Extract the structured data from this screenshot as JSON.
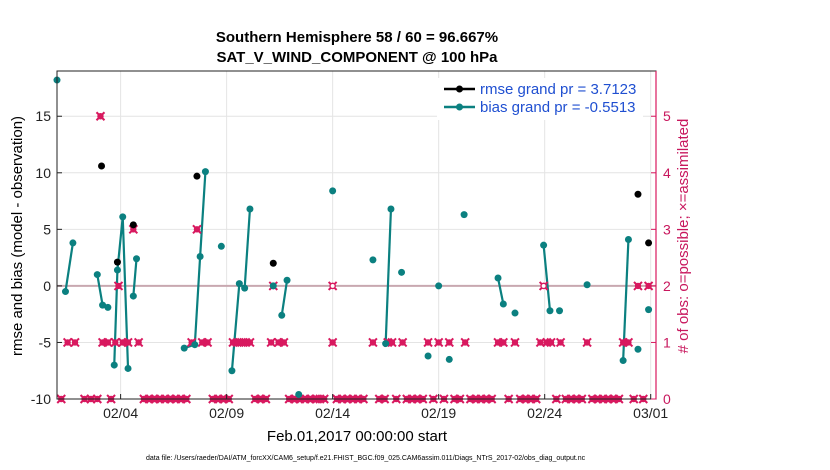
{
  "chart_data": {
    "type": "scatter",
    "title_line1": "Southern Hemisphere 58 / 60 = 96.667%",
    "title_line2": "SAT_V_WIND_COMPONENT @ 100 hPa",
    "xlabel": "Feb.01,2017 00:00:00 start",
    "ylabel": "rmse and bias (model - observation)",
    "ylabel_right": "# of obs: o=possible; ×=assimilated",
    "xlim": [
      1,
      29.25
    ],
    "ylim": [
      -10,
      19
    ],
    "ylim_right": [
      0,
      5.8
    ],
    "x_tick_values": [
      4,
      9,
      14,
      19,
      24,
      29
    ],
    "x_tick_labels": [
      "02/04",
      "02/09",
      "02/14",
      "02/19",
      "02/24",
      "03/01"
    ],
    "y_ticks": [
      -10,
      -5,
      0,
      5,
      10,
      15
    ],
    "y_ticks_right": [
      0,
      1,
      2,
      3,
      4,
      5
    ],
    "grid": true,
    "legend_position": "top-right",
    "zero_line": true,
    "colors": {
      "rmse": "#000000",
      "bias": "#0b8080",
      "obs": "#d8195f",
      "zero": "#c8a8b0",
      "grid": "#e4e4e4"
    },
    "series": [
      {
        "name": "rmse grand pr = 3.7123",
        "segments": [
          [
            [
              3.1,
              10.6
            ]
          ],
          [
            [
              3.85,
              2.1
            ]
          ],
          [
            [
              4.6,
              5.4
            ]
          ],
          [
            [
              7.6,
              9.7
            ]
          ],
          [
            [
              11.2,
              2.0
            ]
          ],
          [
            [
              28.4,
              8.1
            ]
          ],
          [
            [
              28.9,
              3.8
            ]
          ]
        ]
      },
      {
        "name": "bias grand pr = -0.5513",
        "segments": [
          [
            [
              1.0,
              18.2
            ]
          ],
          [
            [
              1.4,
              -0.5
            ],
            [
              1.75,
              3.8
            ]
          ],
          [
            [
              2.9,
              1.0
            ],
            [
              3.15,
              -1.7
            ],
            [
              3.4,
              -1.9
            ]
          ],
          [
            [
              3.7,
              -7.0
            ],
            [
              3.85,
              1.4
            ],
            [
              4.1,
              6.1
            ],
            [
              4.35,
              -7.3
            ]
          ],
          [
            [
              4.6,
              -0.9
            ],
            [
              4.75,
              2.4
            ]
          ],
          [
            [
              7.0,
              -5.5
            ],
            [
              7.5,
              -5.2
            ],
            [
              7.75,
              2.6
            ],
            [
              8.0,
              10.1
            ]
          ],
          [
            [
              8.75,
              3.5
            ]
          ],
          [
            [
              9.25,
              -7.5
            ],
            [
              9.6,
              0.2
            ],
            [
              9.85,
              -0.2
            ],
            [
              10.1,
              6.8
            ]
          ],
          [
            [
              11.2,
              0.0
            ]
          ],
          [
            [
              11.6,
              -2.6
            ],
            [
              11.85,
              0.5
            ]
          ],
          [
            [
              12.4,
              -9.6
            ]
          ],
          [
            [
              14.0,
              8.4
            ]
          ],
          [
            [
              15.9,
              2.3
            ]
          ],
          [
            [
              16.5,
              -5.1
            ],
            [
              16.75,
              6.8
            ]
          ],
          [
            [
              17.25,
              1.2
            ]
          ],
          [
            [
              18.5,
              -6.2
            ]
          ],
          [
            [
              19.0,
              0.0
            ]
          ],
          [
            [
              19.5,
              -6.5
            ]
          ],
          [
            [
              20.2,
              6.3
            ]
          ],
          [
            [
              21.8,
              0.7
            ],
            [
              22.05,
              -1.6
            ]
          ],
          [
            [
              22.6,
              -2.4
            ]
          ],
          [
            [
              23.95,
              3.6
            ],
            [
              24.25,
              -2.2
            ]
          ],
          [
            [
              24.7,
              -2.2
            ]
          ],
          [
            [
              26.0,
              0.1
            ]
          ],
          [
            [
              27.7,
              -6.6
            ],
            [
              27.95,
              4.1
            ]
          ],
          [
            [
              28.4,
              -5.6
            ]
          ],
          [
            [
              28.9,
              -2.1
            ]
          ]
        ]
      }
    ],
    "obs_possible": [
      [
        1.2,
        0
      ],
      [
        1.5,
        1
      ],
      [
        1.85,
        1
      ],
      [
        2.3,
        0
      ],
      [
        2.6,
        0
      ],
      [
        2.9,
        0
      ],
      [
        3.15,
        1
      ],
      [
        3.05,
        5
      ],
      [
        3.4,
        1
      ],
      [
        3.55,
        0
      ],
      [
        3.75,
        1
      ],
      [
        3.9,
        2
      ],
      [
        4.1,
        1
      ],
      [
        4.35,
        1
      ],
      [
        4.6,
        3
      ],
      [
        4.85,
        1
      ],
      [
        5.1,
        0
      ],
      [
        5.35,
        0
      ],
      [
        5.6,
        0
      ],
      [
        5.85,
        0
      ],
      [
        6.1,
        0
      ],
      [
        6.35,
        0
      ],
      [
        6.6,
        0
      ],
      [
        6.85,
        0
      ],
      [
        7.1,
        0
      ],
      [
        7.35,
        1
      ],
      [
        7.6,
        3
      ],
      [
        7.85,
        1
      ],
      [
        8.1,
        1
      ],
      [
        8.35,
        0
      ],
      [
        8.6,
        0
      ],
      [
        8.85,
        0
      ],
      [
        9.1,
        0
      ],
      [
        9.3,
        1
      ],
      [
        9.5,
        1
      ],
      [
        9.7,
        1
      ],
      [
        9.9,
        1
      ],
      [
        10.1,
        1
      ],
      [
        10.35,
        0
      ],
      [
        10.6,
        0
      ],
      [
        10.85,
        0
      ],
      [
        11.1,
        1
      ],
      [
        11.2,
        2
      ],
      [
        11.45,
        1
      ],
      [
        11.7,
        1
      ],
      [
        11.95,
        0
      ],
      [
        12.2,
        0
      ],
      [
        12.45,
        0
      ],
      [
        12.7,
        0
      ],
      [
        12.95,
        0
      ],
      [
        13.2,
        0
      ],
      [
        13.4,
        0
      ],
      [
        13.6,
        0
      ],
      [
        14.0,
        2
      ],
      [
        14.0,
        1
      ],
      [
        14.2,
        0
      ],
      [
        14.45,
        0
      ],
      [
        14.7,
        0
      ],
      [
        14.95,
        0
      ],
      [
        15.2,
        0
      ],
      [
        15.45,
        0
      ],
      [
        15.9,
        1
      ],
      [
        16.2,
        0
      ],
      [
        16.45,
        0
      ],
      [
        16.6,
        1
      ],
      [
        16.8,
        1
      ],
      [
        17.0,
        0
      ],
      [
        17.3,
        1
      ],
      [
        17.5,
        0
      ],
      [
        17.75,
        0
      ],
      [
        18.0,
        0
      ],
      [
        18.25,
        0
      ],
      [
        18.5,
        1
      ],
      [
        18.75,
        0
      ],
      [
        19.0,
        1
      ],
      [
        19.25,
        0
      ],
      [
        19.5,
        1
      ],
      [
        19.75,
        0
      ],
      [
        20.0,
        0
      ],
      [
        20.25,
        1
      ],
      [
        20.5,
        0
      ],
      [
        20.75,
        0
      ],
      [
        21.0,
        0
      ],
      [
        21.25,
        0
      ],
      [
        21.5,
        0
      ],
      [
        21.8,
        1
      ],
      [
        22.05,
        1
      ],
      [
        22.3,
        0
      ],
      [
        22.6,
        1
      ],
      [
        22.85,
        0
      ],
      [
        23.1,
        0
      ],
      [
        23.35,
        0
      ],
      [
        23.6,
        0
      ],
      [
        23.8,
        1
      ],
      [
        23.95,
        2
      ],
      [
        24.1,
        1
      ],
      [
        24.3,
        1
      ],
      [
        24.55,
        0
      ],
      [
        24.75,
        1
      ],
      [
        25.0,
        0
      ],
      [
        25.25,
        0
      ],
      [
        25.5,
        0
      ],
      [
        25.75,
        0
      ],
      [
        26.0,
        1
      ],
      [
        26.25,
        0
      ],
      [
        26.5,
        0
      ],
      [
        26.75,
        0
      ],
      [
        27.0,
        0
      ],
      [
        27.25,
        0
      ],
      [
        27.5,
        0
      ],
      [
        27.7,
        1
      ],
      [
        27.95,
        1
      ],
      [
        28.2,
        0
      ],
      [
        28.4,
        2
      ],
      [
        28.65,
        0
      ],
      [
        28.9,
        2
      ]
    ],
    "obs_assimilated_open": [
      [
        11.2,
        2
      ],
      [
        14.0,
        2
      ],
      [
        23.95,
        2
      ]
    ]
  },
  "footer": "data file: /Users/raeder/DAI/ATM_forcXX/CAM6_setup/f.e21.FHIST_BGC.f09_025.CAM6assim.011/Diags_NTrS_2017-02/obs_diag_output.nc"
}
